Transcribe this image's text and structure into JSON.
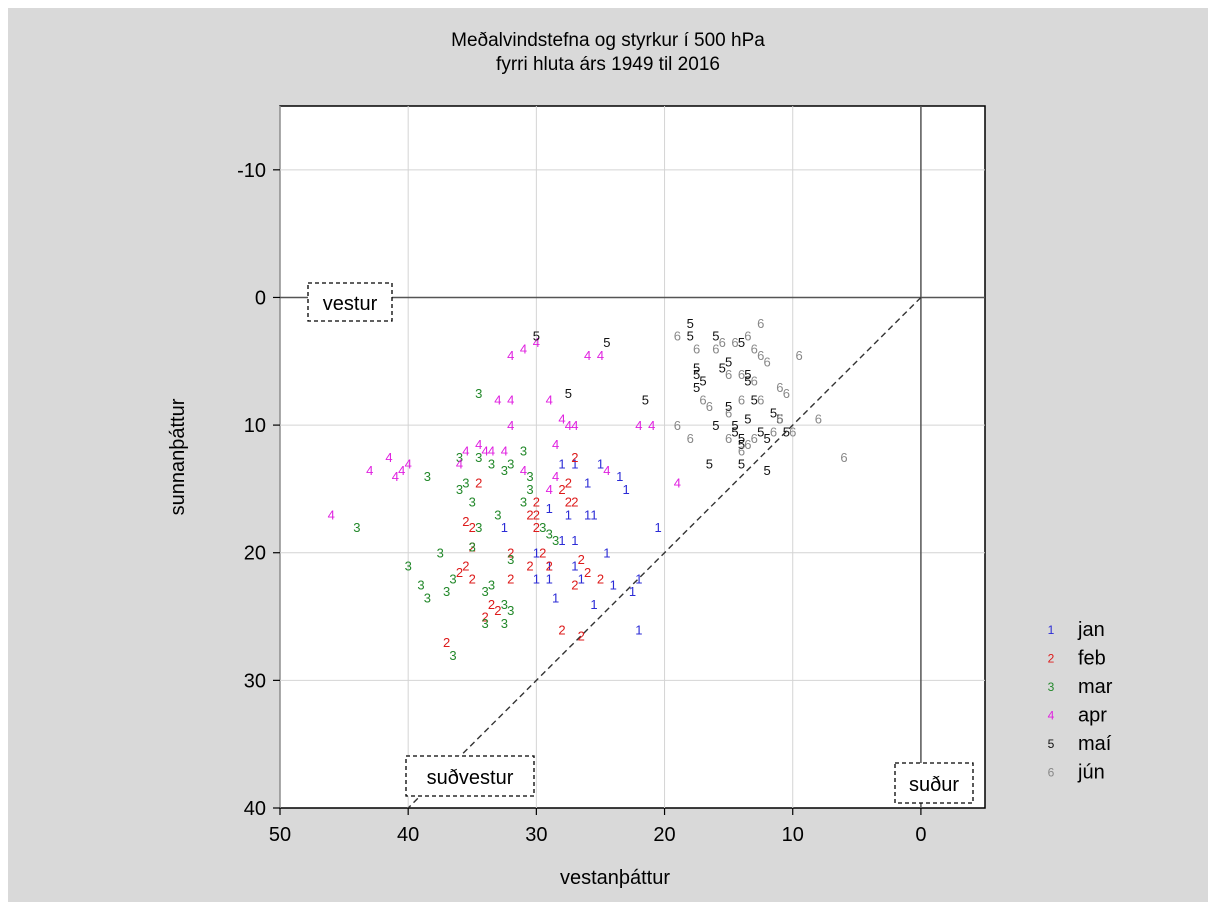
{
  "chart_data": {
    "type": "scatter",
    "title": "Meðalvindstefna og styrkur í 500 hPa",
    "subtitle": "fyrri hluta árs 1949 til 2016",
    "xlabel": "vestanþáttur",
    "ylabel": "sunnanþáttur",
    "xlim": [
      50,
      -5
    ],
    "ylim": [
      -15,
      40
    ],
    "x_ticks": [
      "50",
      "40",
      "30",
      "20",
      "10",
      "0"
    ],
    "y_ticks": [
      "-10",
      "0",
      "10",
      "20",
      "30",
      "40"
    ],
    "grid": true,
    "legend_position": "right",
    "annotations": [
      "vestur",
      "suðvestur",
      "suður"
    ],
    "series": [
      {
        "name": "jan",
        "marker": "1",
        "color": "#2b2bd6",
        "points": [
          [
            32.5,
            18
          ],
          [
            30,
            20
          ],
          [
            30,
            22
          ],
          [
            29,
            22
          ],
          [
            29,
            21
          ],
          [
            28.5,
            23.5
          ],
          [
            29,
            16.5
          ],
          [
            28,
            19
          ],
          [
            27.5,
            17
          ],
          [
            27,
            21
          ],
          [
            27,
            13
          ],
          [
            26,
            17
          ],
          [
            26,
            14.5
          ],
          [
            25.5,
            24
          ],
          [
            25.5,
            17
          ],
          [
            25,
            13
          ],
          [
            24.5,
            20
          ],
          [
            24,
            22.5
          ],
          [
            23.5,
            14
          ],
          [
            23,
            15
          ],
          [
            22.5,
            23
          ],
          [
            22,
            22
          ],
          [
            22,
            26
          ],
          [
            20.5,
            18
          ],
          [
            26.5,
            22
          ],
          [
            28,
            13
          ],
          [
            27,
            19
          ]
        ]
      },
      {
        "name": "feb",
        "marker": "2",
        "color": "#dd1a1a",
        "points": [
          [
            37,
            27
          ],
          [
            36,
            21.5
          ],
          [
            35.5,
            21
          ],
          [
            35.5,
            17.5
          ],
          [
            35,
            18
          ],
          [
            35,
            22
          ],
          [
            35,
            19.5
          ],
          [
            34.5,
            14.5
          ],
          [
            34,
            25
          ],
          [
            33.5,
            24
          ],
          [
            33,
            24.5
          ],
          [
            32,
            22
          ],
          [
            32,
            20
          ],
          [
            30.5,
            17
          ],
          [
            30,
            16
          ],
          [
            30,
            17
          ],
          [
            30,
            18
          ],
          [
            29.5,
            20
          ],
          [
            29,
            21
          ],
          [
            28,
            15
          ],
          [
            27.5,
            14.5
          ],
          [
            27.5,
            16
          ],
          [
            27,
            16
          ],
          [
            27,
            12.5
          ],
          [
            27,
            22.5
          ],
          [
            26.5,
            26.5
          ],
          [
            26,
            21.5
          ],
          [
            26.5,
            20.5
          ],
          [
            25,
            22
          ],
          [
            28,
            26
          ],
          [
            30.5,
            21
          ]
        ]
      },
      {
        "name": "mar",
        "marker": "3",
        "color": "#22882a",
        "points": [
          [
            44,
            18
          ],
          [
            40,
            21
          ],
          [
            39,
            22.5
          ],
          [
            38.5,
            23.5
          ],
          [
            38.5,
            14
          ],
          [
            37.5,
            20
          ],
          [
            37,
            23
          ],
          [
            36.5,
            22
          ],
          [
            36.5,
            28
          ],
          [
            36,
            15
          ],
          [
            36,
            12.5
          ],
          [
            35.5,
            14.5
          ],
          [
            35,
            19.5
          ],
          [
            35,
            16
          ],
          [
            34.5,
            18
          ],
          [
            34.5,
            12.5
          ],
          [
            34,
            25.5
          ],
          [
            34,
            23
          ],
          [
            33.5,
            22.5
          ],
          [
            33.5,
            13
          ],
          [
            33,
            17
          ],
          [
            32.5,
            24
          ],
          [
            32.5,
            25.5
          ],
          [
            32.5,
            13.5
          ],
          [
            32,
            24.5
          ],
          [
            32,
            20.5
          ],
          [
            31,
            12
          ],
          [
            31,
            16
          ],
          [
            30.5,
            14
          ],
          [
            30.5,
            15
          ],
          [
            29.5,
            18
          ],
          [
            29,
            18.5
          ],
          [
            28.5,
            19
          ],
          [
            32,
            13
          ],
          [
            34.5,
            7.5
          ]
        ]
      },
      {
        "name": "apr",
        "marker": "4",
        "color": "#e020e0",
        "points": [
          [
            46,
            17
          ],
          [
            43,
            13.5
          ],
          [
            41.5,
            12.5
          ],
          [
            41,
            14
          ],
          [
            40.5,
            13.5
          ],
          [
            40,
            13
          ],
          [
            36,
            13
          ],
          [
            34.5,
            11.5
          ],
          [
            34,
            12
          ],
          [
            33.5,
            12
          ],
          [
            33,
            8
          ],
          [
            32.5,
            12
          ],
          [
            32,
            10
          ],
          [
            32,
            8
          ],
          [
            32,
            4.5
          ],
          [
            31,
            13.5
          ],
          [
            30,
            3.5
          ],
          [
            29,
            8
          ],
          [
            29,
            15
          ],
          [
            28.5,
            11.5
          ],
          [
            28,
            9.5
          ],
          [
            27.5,
            10
          ],
          [
            27,
            10
          ],
          [
            26,
            4.5
          ],
          [
            25,
            4.5
          ],
          [
            24.5,
            13.5
          ],
          [
            22,
            10
          ],
          [
            21,
            10
          ],
          [
            19,
            14.5
          ],
          [
            31,
            4
          ],
          [
            28.5,
            14
          ],
          [
            35.5,
            12
          ]
        ]
      },
      {
        "name": "maí",
        "marker": "5",
        "color": "#111111",
        "points": [
          [
            30,
            3
          ],
          [
            27.5,
            7.5
          ],
          [
            24.5,
            3.5
          ],
          [
            21.5,
            8
          ],
          [
            18,
            2
          ],
          [
            18,
            3
          ],
          [
            17.5,
            5.5
          ],
          [
            17.5,
            6
          ],
          [
            17.5,
            7
          ],
          [
            17,
            6.5
          ],
          [
            16.5,
            13
          ],
          [
            16,
            10
          ],
          [
            15.5,
            5.5
          ],
          [
            15,
            5
          ],
          [
            15,
            8.5
          ],
          [
            14.5,
            10
          ],
          [
            14.5,
            10.5
          ],
          [
            14,
            11
          ],
          [
            14,
            11.5
          ],
          [
            14,
            13
          ],
          [
            14,
            3.5
          ],
          [
            13.5,
            6
          ],
          [
            13.5,
            6.5
          ],
          [
            13,
            8
          ],
          [
            12.5,
            10.5
          ],
          [
            12,
            11
          ],
          [
            12,
            13.5
          ],
          [
            11.5,
            9
          ],
          [
            11,
            9.5
          ],
          [
            10.5,
            10.5
          ],
          [
            16,
            3
          ],
          [
            13.5,
            9.5
          ]
        ]
      },
      {
        "name": "jún",
        "marker": "6",
        "color": "#888888",
        "points": [
          [
            19,
            3
          ],
          [
            19,
            10
          ],
          [
            18,
            11
          ],
          [
            17.5,
            4
          ],
          [
            17,
            8
          ],
          [
            16,
            4
          ],
          [
            15.5,
            3.5
          ],
          [
            15,
            6
          ],
          [
            15,
            11
          ],
          [
            14.5,
            3.5
          ],
          [
            14,
            6
          ],
          [
            14,
            8
          ],
          [
            14,
            12
          ],
          [
            13.5,
            3
          ],
          [
            13,
            4
          ],
          [
            13,
            6.5
          ],
          [
            13,
            11
          ],
          [
            12.5,
            2
          ],
          [
            12.5,
            4.5
          ],
          [
            12.5,
            8
          ],
          [
            12,
            5
          ],
          [
            11.5,
            10.5
          ],
          [
            11,
            7
          ],
          [
            11,
            9.5
          ],
          [
            10.5,
            7.5
          ],
          [
            10,
            10.5
          ],
          [
            9.5,
            4.5
          ],
          [
            8,
            9.5
          ],
          [
            6,
            12.5
          ],
          [
            15,
            9
          ],
          [
            16.5,
            8.5
          ],
          [
            13.5,
            11.5
          ]
        ]
      }
    ]
  }
}
